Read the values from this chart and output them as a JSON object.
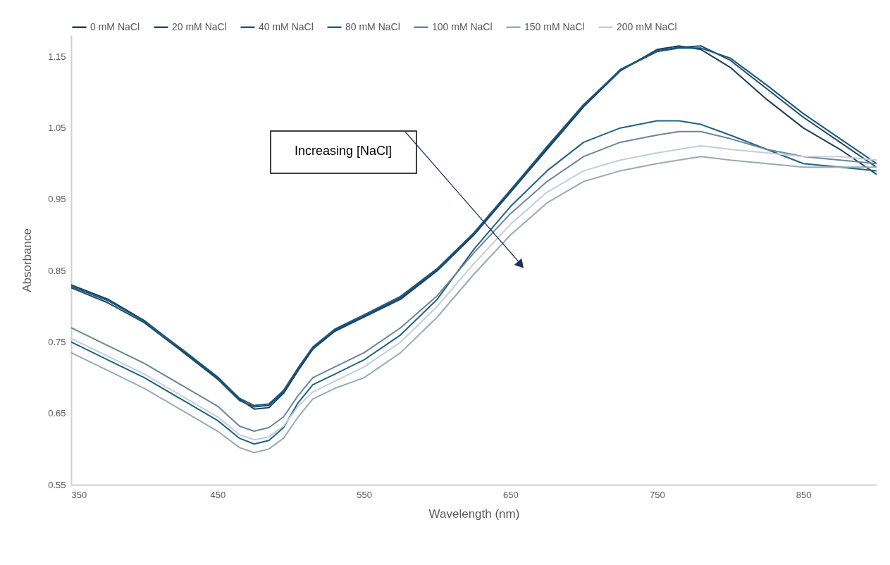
{
  "chart_data": {
    "type": "line",
    "xlabel": "Wavelength (nm)",
    "ylabel": "Absorbance",
    "x": [
      350,
      375,
      400,
      425,
      450,
      465,
      475,
      485,
      495,
      505,
      515,
      530,
      550,
      575,
      600,
      625,
      650,
      675,
      700,
      725,
      750,
      765,
      780,
      800,
      825,
      850,
      875,
      900
    ],
    "series": [
      {
        "name": "0 mM NaCl",
        "color": "#173f5f",
        "values": [
          0.83,
          0.81,
          0.78,
          0.74,
          0.7,
          0.67,
          0.656,
          0.658,
          0.678,
          0.71,
          0.74,
          0.765,
          0.785,
          0.81,
          0.85,
          0.9,
          0.96,
          1.02,
          1.08,
          1.13,
          1.16,
          1.165,
          1.16,
          1.135,
          1.09,
          1.05,
          1.02,
          0.985
        ]
      },
      {
        "name": "20 mM NaCl",
        "color": "#1b4d6d",
        "values": [
          0.826,
          0.805,
          0.777,
          0.738,
          0.698,
          0.668,
          0.659,
          0.661,
          0.68,
          0.712,
          0.742,
          0.767,
          0.786,
          0.812,
          0.852,
          0.902,
          0.962,
          1.022,
          1.082,
          1.132,
          1.158,
          1.163,
          1.165,
          1.145,
          1.105,
          1.065,
          1.03,
          0.995
        ]
      },
      {
        "name": "40 mM NaCl",
        "color": "#1d587a",
        "values": [
          0.828,
          0.808,
          0.779,
          0.741,
          0.701,
          0.671,
          0.661,
          0.663,
          0.682,
          0.714,
          0.743,
          0.768,
          0.788,
          0.814,
          0.853,
          0.903,
          0.963,
          1.024,
          1.083,
          1.131,
          1.157,
          1.162,
          1.162,
          1.148,
          1.11,
          1.07,
          1.035,
          1.0
        ]
      },
      {
        "name": "80 mM NaCl",
        "color": "#1f6283",
        "values": [
          0.75,
          0.725,
          0.7,
          0.67,
          0.64,
          0.615,
          0.607,
          0.612,
          0.63,
          0.665,
          0.69,
          0.705,
          0.725,
          0.76,
          0.81,
          0.88,
          0.94,
          0.99,
          1.03,
          1.05,
          1.06,
          1.06,
          1.055,
          1.04,
          1.02,
          1.0,
          0.995,
          0.99
        ]
      },
      {
        "name": "100 mM NaCl",
        "color": "#6b859a",
        "values": [
          0.77,
          0.745,
          0.72,
          0.69,
          0.66,
          0.632,
          0.625,
          0.63,
          0.645,
          0.675,
          0.7,
          0.715,
          0.735,
          0.77,
          0.815,
          0.875,
          0.93,
          0.975,
          1.01,
          1.03,
          1.04,
          1.045,
          1.045,
          1.035,
          1.02,
          1.01,
          1.005,
          1.0
        ]
      },
      {
        "name": "150 mM NaCl",
        "color": "#9aa9b7",
        "values": [
          0.735,
          0.71,
          0.685,
          0.655,
          0.625,
          0.602,
          0.595,
          0.6,
          0.615,
          0.645,
          0.67,
          0.685,
          0.7,
          0.735,
          0.785,
          0.845,
          0.9,
          0.945,
          0.975,
          0.99,
          1.0,
          1.005,
          1.01,
          1.005,
          1.0,
          0.995,
          0.995,
          0.995
        ]
      },
      {
        "name": "200 mM NaCl",
        "color": "#c3ced8",
        "values": [
          0.755,
          0.73,
          0.705,
          0.675,
          0.645,
          0.62,
          0.613,
          0.617,
          0.632,
          0.66,
          0.68,
          0.695,
          0.715,
          0.75,
          0.8,
          0.86,
          0.915,
          0.96,
          0.99,
          1.005,
          1.015,
          1.02,
          1.025,
          1.02,
          1.015,
          1.01,
          1.01,
          1.005
        ]
      }
    ],
    "xlim": [
      350,
      900
    ],
    "xticks": [
      350,
      450,
      550,
      650,
      750,
      850
    ],
    "ylim": [
      0.55,
      1.18
    ],
    "yticks": [
      0.55,
      0.65,
      0.75,
      0.85,
      0.95,
      1.05,
      1.15
    ],
    "grid": false,
    "legend": "top",
    "line_style": "solid",
    "marker": "none",
    "annotations": [
      "Increasing [NaCl]"
    ]
  }
}
